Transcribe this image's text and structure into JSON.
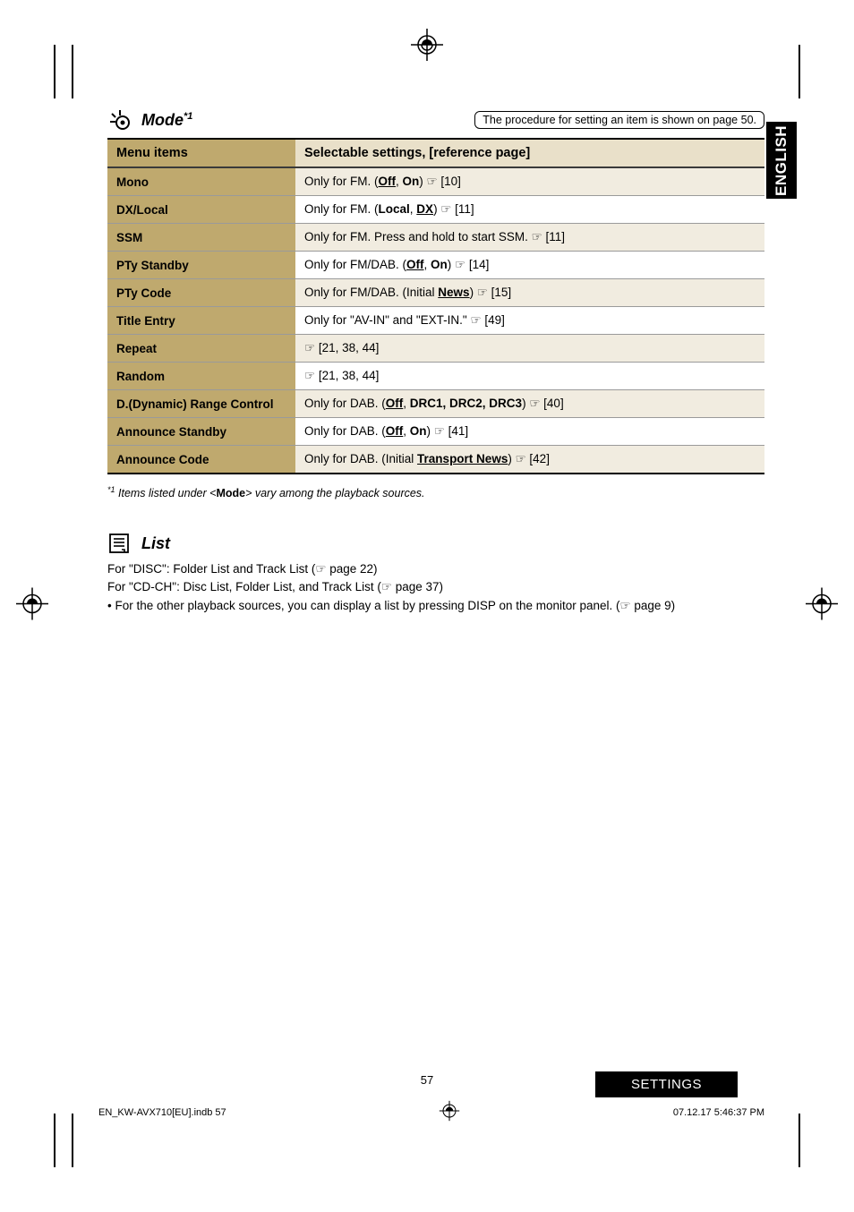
{
  "header": {
    "mode_title": "Mode",
    "mode_superscript": "*1",
    "procedure_text": "The procedure for setting an item is shown on page 50."
  },
  "vtab_label": "ENGLISH",
  "table": {
    "col1_header": "Menu items",
    "col2_header": "Selectable settings, [reference page]",
    "rows": [
      {
        "name": "Mono",
        "desc": "Only for FM. (<b class='u'>Off</b>, <b>On</b>) ☞ [10]"
      },
      {
        "name": "DX/Local",
        "desc": "Only for FM. (<b>Local</b>, <b class='u'>DX</b>) ☞ [11]"
      },
      {
        "name": "SSM",
        "desc": "Only for FM. Press and hold to start SSM. ☞ [11]"
      },
      {
        "name": "PTy Standby",
        "desc": "Only for FM/DAB. (<b class='u'>Off</b>, <b>On</b>) ☞ [14]"
      },
      {
        "name": "PTy Code",
        "desc": "Only for FM/DAB. (Initial <b class='u'>News</b>) ☞ [15]"
      },
      {
        "name": "Title Entry",
        "desc": "Only for \"AV-IN\" and \"EXT-IN.\" ☞ [49]"
      },
      {
        "name": "Repeat",
        "desc": "☞ [21, 38, 44]"
      },
      {
        "name": "Random",
        "desc": "☞ [21, 38, 44]"
      },
      {
        "name": "D.(Dynamic) Range Control",
        "desc": "Only for DAB. (<b class='u'>Off</b>, <b>DRC1, DRC2, DRC3</b>) ☞ [40]"
      },
      {
        "name": "Announce Standby",
        "desc": "Only for DAB. (<b class='u'>Off</b>, <b>On</b>) ☞ [41]"
      },
      {
        "name": "Announce Code",
        "desc": "Only for DAB. (Initial <b class='u'>Transport News</b>) ☞ [42]"
      }
    ]
  },
  "footnote": {
    "marker": "*1",
    "text": "Items listed under <",
    "bold": "Mode",
    "text2": "> vary among the playback sources."
  },
  "list_section": {
    "title": "List",
    "line1": "For \"DISC\": Folder List and Track List (☞ page 22)",
    "line2": "For \"CD-CH\": Disc List, Folder List, and Track List (☞ page 37)",
    "line3": "• For the other playback sources, you can display a list by pressing DISP on the monitor panel. (☞ page 9)"
  },
  "page_number": "57",
  "settings_label": "SETTINGS",
  "footer": {
    "left": "EN_KW-AVX710[EU].indb   57",
    "right": "07.12.17   5:46:37 PM"
  },
  "colors": {
    "header_cell_bg": "#bfa96e",
    "header_value_bg": "#e9e0c9",
    "row_alt_bg": "#f1ece0"
  }
}
